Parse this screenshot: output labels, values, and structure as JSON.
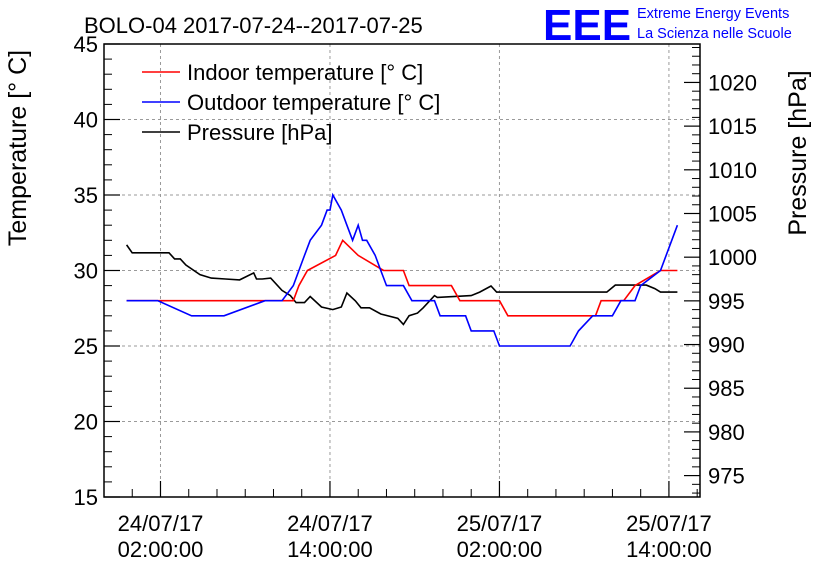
{
  "chart_data": {
    "type": "line",
    "title": "BOLO-04 2017-07-24--2017-07-25",
    "ylabel": "Temperature [° C]",
    "y2label": "Pressure [hPa]",
    "ylim": [
      15,
      45
    ],
    "y2lim": [
      972.55,
      1024.4
    ],
    "yticks": [
      "15",
      "20",
      "25",
      "30",
      "35",
      "40",
      "45"
    ],
    "y2ticks": [
      "975",
      "980",
      "985",
      "990",
      "995",
      "1000",
      "1005",
      "1010",
      "1015",
      "1020"
    ],
    "xticks": [
      {
        "line1": "24/07/17",
        "line2": "02:00:00",
        "hour": 0
      },
      {
        "line1": "24/07/17",
        "line2": "14:00:00",
        "hour": 12
      },
      {
        "line1": "25/07/17",
        "line2": "02:00:00",
        "hour": 24
      },
      {
        "line1": "25/07/17",
        "line2": "14:00:00",
        "hour": 36
      }
    ],
    "xlim_hours": [
      -4,
      38.2
    ],
    "grid": true,
    "legend_position": "top-left",
    "series": [
      {
        "name": "Indoor temperature [° C]",
        "color": "#ff0000",
        "axis": "left",
        "x": [
          -2.4,
          1.3,
          1.8,
          4.6,
          5.2,
          9.4,
          9.8,
          10.4,
          12.4,
          12.9,
          14.0,
          15.8,
          17.2,
          17.6,
          20.6,
          21.2,
          24.0,
          24.6,
          30.8,
          31.2,
          32.8,
          33.6,
          35.4,
          36.6
        ],
        "y": [
          28,
          28,
          28,
          28,
          28,
          28,
          29,
          30,
          31,
          32,
          31,
          30,
          30,
          29,
          29,
          28,
          28,
          27,
          27,
          28,
          28,
          29,
          30,
          30
        ]
      },
      {
        "name": "Outdoor temperature [° C]",
        "color": "#0000ff",
        "axis": "left",
        "x": [
          -2.4,
          -0.2,
          2.2,
          4.5,
          7.4,
          7.6,
          8.6,
          9.4,
          9.8,
          10.2,
          10.6,
          11.4,
          11.8,
          12.0,
          12.2,
          12.8,
          13.2,
          13.6,
          14.0,
          14.3,
          14.6,
          15.2,
          15.6,
          16.0,
          17.2,
          17.8,
          19.4,
          19.8,
          21.6,
          22.0,
          23.6,
          24.0,
          29.0,
          29.6,
          30.6,
          31.2,
          32.0,
          32.6,
          33.6,
          34.0,
          35.4,
          36.6
        ],
        "y": [
          28,
          28,
          27,
          27,
          28,
          28,
          28,
          29,
          30,
          31,
          32,
          33,
          34,
          34,
          35,
          34,
          33,
          32,
          33,
          32,
          32,
          31,
          30,
          29,
          29,
          28,
          28,
          27,
          27,
          26,
          26,
          25,
          25,
          26,
          27,
          27,
          27,
          28,
          28,
          29,
          30,
          33
        ]
      },
      {
        "name": "Pressure [hPa]",
        "color": "#000000",
        "axis": "right",
        "x": [
          -2.4,
          -2.0,
          0.2,
          0.6,
          1.0,
          1.4,
          1.8,
          2.8,
          3.6,
          4.6,
          5.6,
          6.6,
          6.8,
          7.2,
          7.8,
          8.6,
          9.2,
          9.6,
          10.2,
          10.6,
          11.4,
          12.2,
          12.8,
          13.2,
          13.8,
          14.2,
          14.8,
          15.6,
          16.8,
          17.2,
          17.6,
          18.2,
          18.6,
          19.4,
          19.6,
          22.0,
          22.6,
          23.4,
          23.8,
          24.2,
          27.0,
          31.6,
          32.2,
          33.6,
          34.0,
          34.4,
          35.0,
          35.4,
          36.6
        ],
        "y": [
          1001.4,
          1000.5,
          1000.5,
          1000.5,
          999.8,
          999.8,
          999.1,
          998.0,
          997.6,
          997.5,
          997.4,
          998.2,
          997.5,
          997.5,
          997.6,
          996.2,
          995.6,
          994.8,
          994.8,
          995.5,
          994.3,
          994.0,
          994.3,
          995.9,
          995.0,
          994.2,
          994.2,
          993.5,
          993.0,
          992.3,
          993.3,
          993.6,
          994.2,
          995.6,
          995.4,
          995.6,
          996.0,
          996.7,
          996.0,
          996.0,
          996.0,
          996.0,
          996.8,
          996.8,
          996.8,
          996.8,
          996.4,
          996.0,
          996.0
        ]
      }
    ]
  },
  "logo": {
    "letters": "EEE",
    "line1": "Extreme Energy Events",
    "line2": "La Scienza nelle Scuole",
    "color": "#0000ff"
  }
}
